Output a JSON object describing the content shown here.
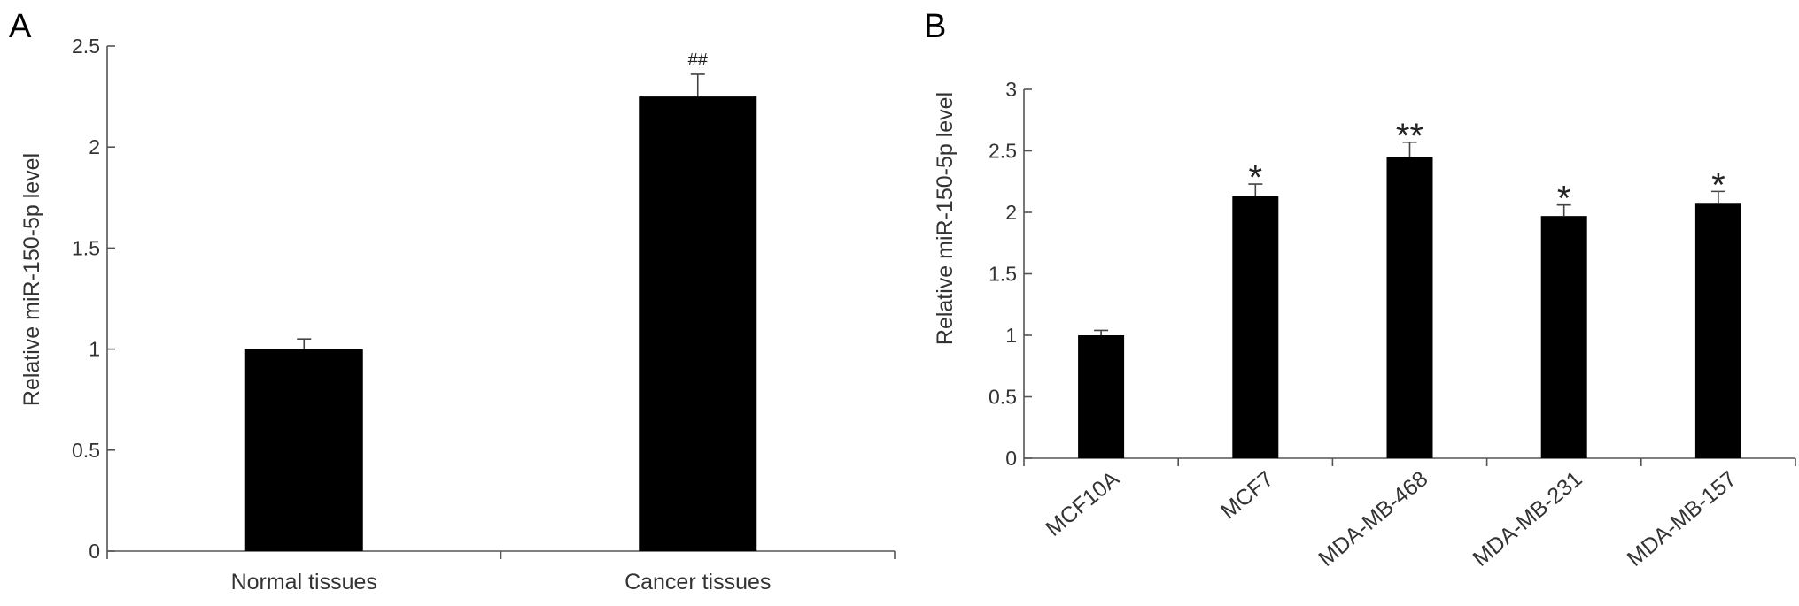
{
  "chart_data": [
    {
      "type": "bar",
      "panel": "A",
      "ylabel": "Relative miR-150-5p level",
      "ylim": [
        0,
        2.5
      ],
      "yticks": [
        "0",
        "0.5",
        "1",
        "1.5",
        "2",
        "2.5"
      ],
      "categories": [
        "Normal tissues",
        "Cancer tissues"
      ],
      "values": [
        1.0,
        2.25
      ],
      "errors": [
        0.05,
        0.11
      ],
      "annotations": [
        "",
        "##"
      ],
      "grid": false,
      "legend": false
    },
    {
      "type": "bar",
      "panel": "B",
      "ylabel": "Relative miR-150-5p level",
      "ylim": [
        0,
        3
      ],
      "yticks": [
        "0",
        "0.5",
        "1",
        "1.5",
        "2",
        "2.5",
        "3"
      ],
      "categories": [
        "MCF10A",
        "MCF7",
        "MDA-MB-468",
        "MDA-MB-231",
        "MDA-MB-157"
      ],
      "values": [
        1.0,
        2.13,
        2.45,
        1.97,
        2.07
      ],
      "errors": [
        0.04,
        0.1,
        0.12,
        0.09,
        0.1
      ],
      "annotations": [
        "",
        "*",
        "**",
        "*",
        "*"
      ],
      "grid": false,
      "legend": false
    }
  ]
}
